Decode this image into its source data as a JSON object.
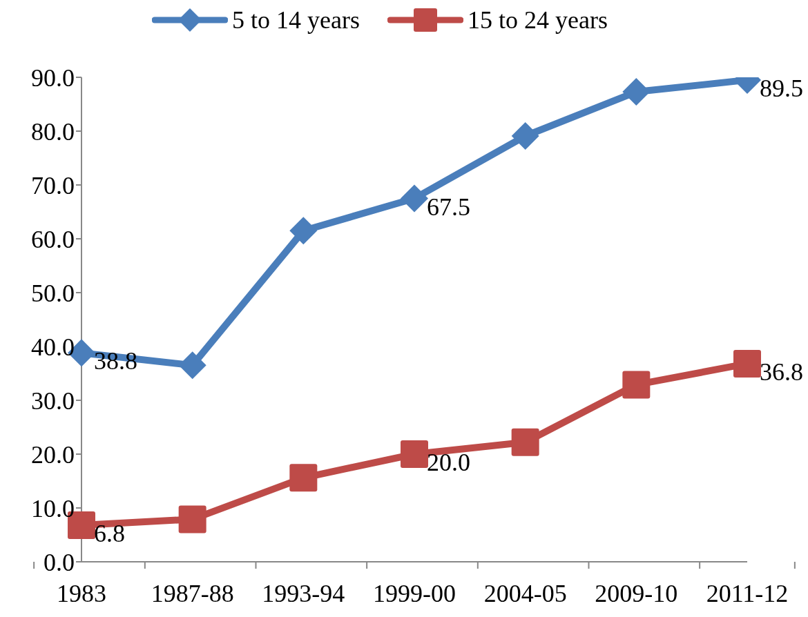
{
  "chart_data": {
    "type": "line",
    "categories": [
      "1983",
      "1987-88",
      "1993-94",
      "1999-00",
      "2004-05",
      "2009-10",
      "2011-12"
    ],
    "series": [
      {
        "name": "5 to 14 years",
        "color": "#4a7ebb",
        "marker": "diamond",
        "values": [
          38.8,
          36.5,
          61.5,
          67.5,
          79.1,
          87.3,
          89.5
        ],
        "value_labels": [
          "38.8",
          null,
          null,
          "67.5",
          null,
          null,
          "89.5"
        ]
      },
      {
        "name": "15 to 24 years",
        "color": "#be4b48",
        "marker": "square",
        "values": [
          6.8,
          7.9,
          15.6,
          20.0,
          22.2,
          32.9,
          36.8
        ],
        "value_labels": [
          "6.8",
          null,
          null,
          "20.0",
          null,
          null,
          "36.8"
        ]
      }
    ],
    "ylim": [
      0,
      90
    ],
    "yticks": [
      {
        "value": 0,
        "label": "0.0"
      },
      {
        "value": 10,
        "label": "10.0"
      },
      {
        "value": 20,
        "label": "20.0"
      },
      {
        "value": 30,
        "label": "30.0"
      },
      {
        "value": 40,
        "label": "40.0"
      },
      {
        "value": 50,
        "label": "50.0"
      },
      {
        "value": 60,
        "label": "60.0"
      },
      {
        "value": 70,
        "label": "70.0"
      },
      {
        "value": 80,
        "label": "80.0"
      },
      {
        "value": 90,
        "label": "90.0"
      }
    ],
    "grid": false,
    "legend": "top"
  }
}
